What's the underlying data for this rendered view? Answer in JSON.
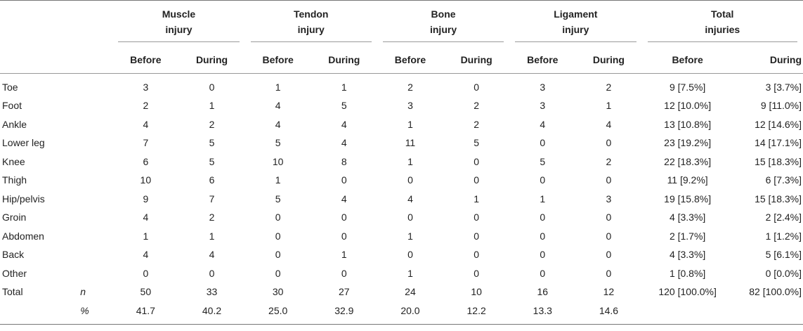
{
  "groups": [
    {
      "line1": "Muscle",
      "line2": "injury"
    },
    {
      "line1": "Tendon",
      "line2": "injury"
    },
    {
      "line1": "Bone",
      "line2": "injury"
    },
    {
      "line1": "Ligament",
      "line2": "injury"
    },
    {
      "line1": "Total",
      "line2": "injuries"
    }
  ],
  "subheads": {
    "before": "Before",
    "during": "During"
  },
  "rows": [
    {
      "label": "Toe",
      "n": "",
      "values": [
        "3",
        "0",
        "1",
        "1",
        "2",
        "0",
        "3",
        "2",
        "9 [7.5%]",
        "3 [3.7%]"
      ]
    },
    {
      "label": "Foot",
      "n": "",
      "values": [
        "2",
        "1",
        "4",
        "5",
        "3",
        "2",
        "3",
        "1",
        "12 [10.0%]",
        "9 [11.0%]"
      ]
    },
    {
      "label": "Ankle",
      "n": "",
      "values": [
        "4",
        "2",
        "4",
        "4",
        "1",
        "2",
        "4",
        "4",
        "13 [10.8%]",
        "12 [14.6%]"
      ]
    },
    {
      "label": "Lower leg",
      "n": "",
      "values": [
        "7",
        "5",
        "5",
        "4",
        "11",
        "5",
        "0",
        "0",
        "23 [19.2%]",
        "14 [17.1%]"
      ]
    },
    {
      "label": "Knee",
      "n": "",
      "values": [
        "6",
        "5",
        "10",
        "8",
        "1",
        "0",
        "5",
        "2",
        "22 [18.3%]",
        "15 [18.3%]"
      ]
    },
    {
      "label": "Thigh",
      "n": "",
      "values": [
        "10",
        "6",
        "1",
        "0",
        "0",
        "0",
        "0",
        "0",
        "11 [9.2%]",
        "6 [7.3%]"
      ]
    },
    {
      "label": "Hip/pelvis",
      "n": "",
      "values": [
        "9",
        "7",
        "5",
        "4",
        "4",
        "1",
        "1",
        "3",
        "19 [15.8%]",
        "15 [18.3%]"
      ]
    },
    {
      "label": "Groin",
      "n": "",
      "values": [
        "4",
        "2",
        "0",
        "0",
        "0",
        "0",
        "0",
        "0",
        "4 [3.3%]",
        "2 [2.4%]"
      ]
    },
    {
      "label": "Abdomen",
      "n": "",
      "values": [
        "1",
        "1",
        "0",
        "0",
        "1",
        "0",
        "0",
        "0",
        "2 [1.7%]",
        "1 [1.2%]"
      ]
    },
    {
      "label": "Back",
      "n": "",
      "values": [
        "4",
        "4",
        "0",
        "1",
        "0",
        "0",
        "0",
        "0",
        "4 [3.3%]",
        "5 [6.1%]"
      ]
    },
    {
      "label": "Other",
      "n": "",
      "values": [
        "0",
        "0",
        "0",
        "0",
        "1",
        "0",
        "0",
        "0",
        "1 [0.8%]",
        "0 [0.0%]"
      ]
    },
    {
      "label": "Total",
      "n": "n",
      "values": [
        "50",
        "33",
        "30",
        "27",
        "24",
        "10",
        "16",
        "12",
        "120 [100.0%]",
        "82 [100.0%]"
      ]
    },
    {
      "label": "",
      "n": "%",
      "values": [
        "41.7",
        "40.2",
        "25.0",
        "32.9",
        "20.0",
        "12.2",
        "13.3",
        "14.6",
        "",
        ""
      ]
    }
  ]
}
